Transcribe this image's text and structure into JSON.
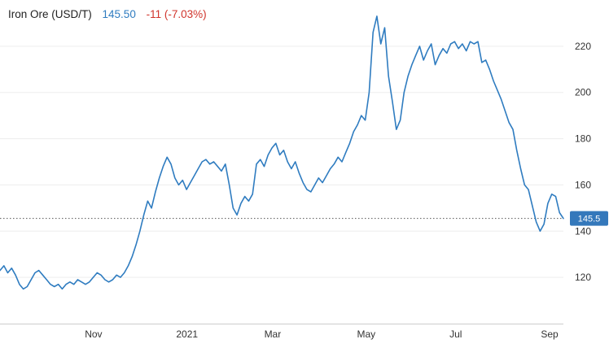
{
  "header": {
    "title": "Iron Ore (USD/T)",
    "price": "145.50",
    "change": "-11 (-7.03%)"
  },
  "colors": {
    "title_text": "#222222",
    "price_text": "#2f7cc0",
    "change_text": "#d0342c",
    "line": "#2f7cc0",
    "badge_bg": "#3478bb",
    "badge_text": "#ffffff",
    "axis_text": "#333333",
    "grid": "#ededed",
    "axis_line": "#cccccc",
    "dotted_line": "#555555",
    "background": "#ffffff"
  },
  "current_price": {
    "value": 145.5,
    "label": "145.5"
  },
  "chart_data": {
    "type": "line",
    "title": "Iron Ore (USD/T)",
    "xlabel": "",
    "ylabel": "",
    "ylim": [
      100,
      240
    ],
    "grid": true,
    "legend": false,
    "yticks": [
      120,
      140,
      160,
      180,
      200,
      220
    ],
    "xticks": [
      {
        "label": "Nov",
        "pos": 0.166
      },
      {
        "label": "2021",
        "pos": 0.332
      },
      {
        "label": "Mar",
        "pos": 0.484
      },
      {
        "label": "May",
        "pos": 0.65
      },
      {
        "label": "Jul",
        "pos": 0.809
      },
      {
        "label": "Sep",
        "pos": 0.9755
      }
    ],
    "series": [
      {
        "name": "Iron Ore (USD/T)",
        "values": [
          123,
          125,
          122,
          124,
          121,
          117,
          115,
          116,
          119,
          122,
          123,
          121,
          119,
          117,
          116,
          117,
          115,
          117,
          118,
          117,
          119,
          118,
          117,
          118,
          120,
          122,
          121,
          119,
          118,
          119,
          121,
          120,
          122,
          125,
          129,
          134,
          140,
          147,
          153,
          150,
          157,
          163,
          168,
          172,
          169,
          163,
          160,
          162,
          158,
          161,
          164,
          167,
          170,
          171,
          169,
          170,
          168,
          166,
          169,
          160,
          150,
          147,
          152,
          155,
          153,
          156,
          169,
          171,
          168,
          173,
          176,
          178,
          173,
          175,
          170,
          167,
          170,
          165,
          161,
          158,
          157,
          160,
          163,
          161,
          164,
          167,
          169,
          172,
          170,
          174,
          178,
          183,
          186,
          190,
          188,
          200,
          226,
          233,
          221,
          228,
          207,
          196,
          184,
          188,
          200,
          207,
          212,
          216,
          220,
          214,
          218,
          221,
          212,
          216,
          219,
          217,
          221,
          222,
          219,
          221,
          218,
          222,
          221,
          222,
          213,
          214,
          210,
          205,
          201,
          197,
          192,
          187,
          184,
          175,
          167,
          160,
          158,
          151,
          144,
          140,
          143,
          152,
          156,
          155,
          148,
          145.5
        ]
      }
    ],
    "current_price": 145.5
  }
}
